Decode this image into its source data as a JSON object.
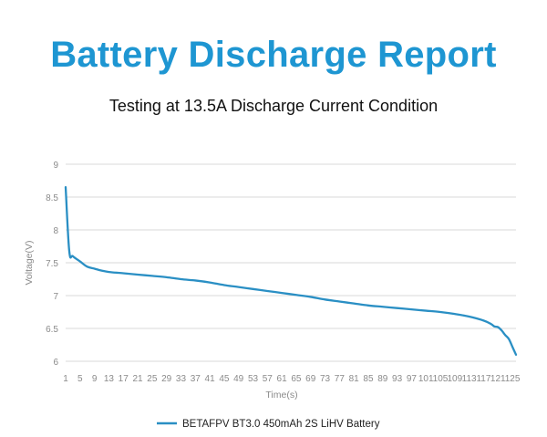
{
  "header": {
    "title": "Battery Discharge Report",
    "subtitle": "Testing at 13.5A Discharge Current Condition"
  },
  "colors": {
    "title": "#1e96d2",
    "series": "#2a8fc4",
    "grid": "#d9d9d9",
    "axis_text": "#8a8a8a"
  },
  "chart_data": {
    "type": "line",
    "title": "Testing at 13.5A Discharge Current Condition",
    "xlabel": "Time(s)",
    "ylabel": "Voltage(V)",
    "ylim": [
      6,
      9
    ],
    "yticks": [
      6,
      6.5,
      7,
      7.5,
      8,
      8.5,
      9
    ],
    "xlim": [
      1,
      126
    ],
    "xticks": [
      1,
      5,
      9,
      13,
      17,
      21,
      25,
      29,
      33,
      37,
      41,
      45,
      49,
      53,
      57,
      61,
      65,
      69,
      73,
      77,
      81,
      85,
      89,
      93,
      97,
      101,
      105,
      109,
      113,
      117,
      121,
      125
    ],
    "grid": "horizontal",
    "legend_position": "bottom",
    "series": [
      {
        "name": "BETAFPV BT3.0 450mAh 2S LiHV Battery",
        "x": [
          1,
          2,
          3,
          5,
          7,
          9,
          11,
          13,
          17,
          21,
          25,
          29,
          33,
          37,
          41,
          45,
          49,
          53,
          57,
          61,
          65,
          69,
          73,
          77,
          81,
          85,
          89,
          93,
          97,
          101,
          105,
          109,
          113,
          117,
          119,
          120,
          121,
          122,
          123,
          124,
          125,
          126
        ],
        "y": [
          8.65,
          7.68,
          7.6,
          7.52,
          7.44,
          7.41,
          7.38,
          7.36,
          7.34,
          7.32,
          7.3,
          7.28,
          7.25,
          7.23,
          7.2,
          7.16,
          7.13,
          7.1,
          7.07,
          7.04,
          7.01,
          6.98,
          6.94,
          6.91,
          6.88,
          6.85,
          6.83,
          6.81,
          6.79,
          6.77,
          6.75,
          6.72,
          6.68,
          6.62,
          6.57,
          6.53,
          6.52,
          6.47,
          6.4,
          6.34,
          6.22,
          6.1
        ]
      }
    ]
  }
}
